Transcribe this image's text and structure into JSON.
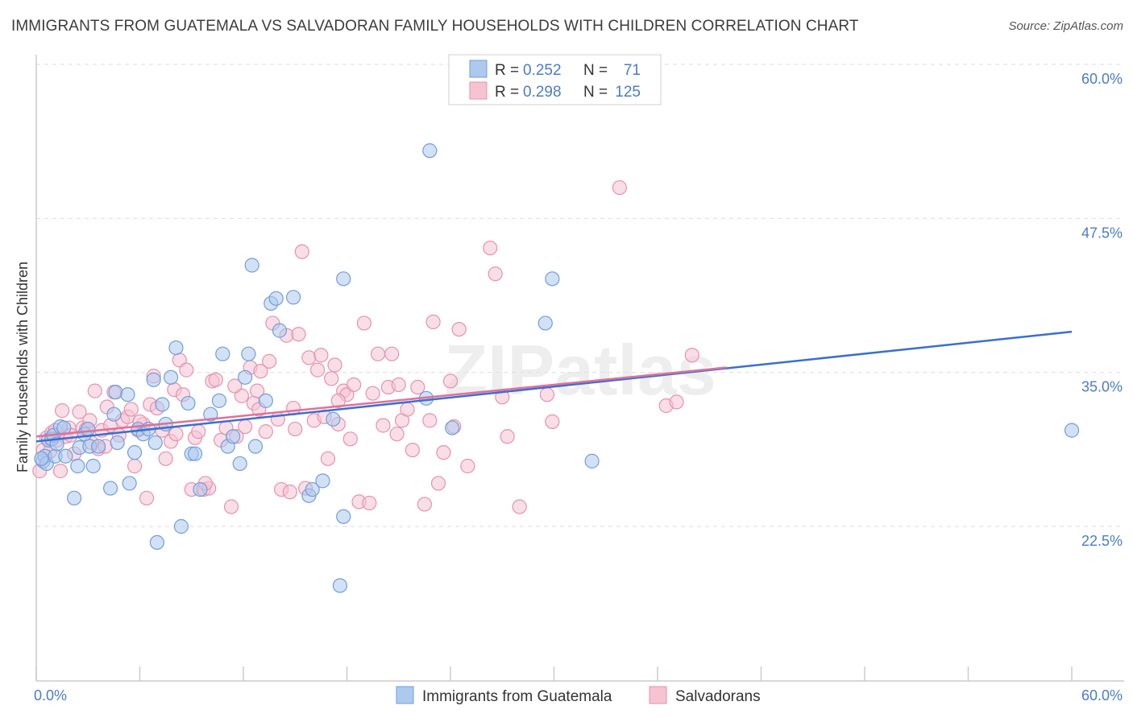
{
  "title": "IMMIGRANTS FROM GUATEMALA VS SALVADORAN FAMILY HOUSEHOLDS WITH CHILDREN CORRELATION CHART",
  "source": "Source: ZipAtlas.com",
  "watermark": "ZIPatlas",
  "colors": {
    "blue_fill": "#aec9ee",
    "blue_stroke": "#6f9fdc",
    "blue_line": "#3a6fcf",
    "pink_fill": "#f6c3d3",
    "pink_stroke": "#e592ae",
    "pink_line": "#e0709a",
    "tick_text": "#4a7cc9",
    "grid": "#dddddd"
  },
  "legend": {
    "rows": [
      {
        "r_label": "R =",
        "r_value": "0.252",
        "n_label": "N =",
        "n_value": "71"
      },
      {
        "r_label": "R =",
        "r_value": "0.298",
        "n_label": "N =",
        "n_value": "125"
      }
    ]
  },
  "chart_data": {
    "type": "scatter",
    "title": "IMMIGRANTS FROM GUATEMALA VS SALVADORAN FAMILY HOUSEHOLDS WITH CHILDREN CORRELATION CHART",
    "xlabel": "",
    "ylabel": "Family Households with Children",
    "xlim": [
      0,
      60
    ],
    "ylim": [
      12,
      61
    ],
    "x_tick_labels": [
      "0.0%",
      "60.0%"
    ],
    "y_ticks": [
      22.5,
      35.0,
      47.5,
      60.0
    ],
    "y_tick_labels": [
      "22.5%",
      "35.0%",
      "47.5%",
      "60.0%"
    ],
    "grid": "horizontal dashed",
    "legend_placement": "top-center",
    "series": [
      {
        "name": "Immigrants from Guatemala",
        "color": "#aec9ee",
        "trend": {
          "x": [
            0,
            60
          ],
          "y": [
            29.4,
            38.3
          ]
        },
        "points": [
          [
            0.4,
            27.8
          ],
          [
            0.5,
            28.2
          ],
          [
            0.6,
            27.6
          ],
          [
            0.7,
            29.5
          ],
          [
            0.9,
            29.6
          ],
          [
            1.0,
            29.9
          ],
          [
            1.1,
            28.2
          ],
          [
            1.2,
            29.2
          ],
          [
            1.4,
            30.6
          ],
          [
            1.6,
            30.5
          ],
          [
            1.7,
            28.2
          ],
          [
            2.2,
            24.8
          ],
          [
            2.4,
            27.4
          ],
          [
            2.5,
            28.9
          ],
          [
            2.8,
            30.0
          ],
          [
            3.0,
            30.4
          ],
          [
            3.1,
            29.0
          ],
          [
            3.3,
            27.4
          ],
          [
            3.6,
            29.0
          ],
          [
            4.3,
            25.6
          ],
          [
            4.5,
            31.6
          ],
          [
            4.6,
            33.4
          ],
          [
            4.7,
            29.3
          ],
          [
            5.3,
            33.2
          ],
          [
            5.4,
            26.0
          ],
          [
            5.7,
            28.5
          ],
          [
            5.9,
            30.4
          ],
          [
            6.2,
            30.0
          ],
          [
            6.5,
            30.4
          ],
          [
            6.8,
            34.4
          ],
          [
            6.9,
            29.3
          ],
          [
            7.0,
            21.2
          ],
          [
            7.3,
            32.4
          ],
          [
            7.5,
            30.8
          ],
          [
            7.8,
            34.6
          ],
          [
            8.1,
            37.0
          ],
          [
            8.4,
            22.5
          ],
          [
            8.8,
            32.5
          ],
          [
            9.0,
            28.4
          ],
          [
            9.2,
            28.4
          ],
          [
            9.5,
            25.5
          ],
          [
            10.1,
            31.6
          ],
          [
            10.6,
            32.7
          ],
          [
            10.8,
            36.5
          ],
          [
            11.1,
            29.0
          ],
          [
            11.4,
            29.8
          ],
          [
            11.8,
            27.6
          ],
          [
            12.1,
            34.6
          ],
          [
            12.3,
            36.5
          ],
          [
            12.5,
            43.7
          ],
          [
            12.7,
            29.0
          ],
          [
            13.3,
            32.7
          ],
          [
            13.6,
            40.6
          ],
          [
            13.9,
            41.0
          ],
          [
            14.1,
            38.4
          ],
          [
            14.9,
            41.1
          ],
          [
            15.8,
            25.0
          ],
          [
            16.0,
            25.5
          ],
          [
            16.6,
            26.2
          ],
          [
            17.2,
            31.2
          ],
          [
            17.6,
            17.7
          ],
          [
            17.8,
            42.6
          ],
          [
            17.8,
            23.3
          ],
          [
            22.6,
            32.9
          ],
          [
            22.8,
            53.0
          ],
          [
            24.1,
            30.5
          ],
          [
            29.5,
            39.0
          ],
          [
            29.9,
            42.6
          ],
          [
            32.2,
            27.8
          ],
          [
            60.0,
            30.3
          ],
          [
            0.3,
            28.0
          ]
        ]
      },
      {
        "name": "Salvadorans",
        "color": "#f6c3d3",
        "trend": {
          "x": [
            0,
            40
          ],
          "y": [
            29.8,
            35.4
          ]
        },
        "points": [
          [
            0.2,
            27.0
          ],
          [
            0.4,
            28.7
          ],
          [
            0.6,
            29.7
          ],
          [
            0.8,
            28.6
          ],
          [
            0.9,
            30.1
          ],
          [
            1.1,
            30.3
          ],
          [
            1.2,
            29.5
          ],
          [
            1.4,
            27.0
          ],
          [
            1.5,
            31.9
          ],
          [
            1.7,
            29.8
          ],
          [
            1.9,
            30.5
          ],
          [
            2.0,
            29.9
          ],
          [
            2.2,
            28.4
          ],
          [
            2.5,
            31.8
          ],
          [
            2.7,
            30.5
          ],
          [
            2.9,
            30.4
          ],
          [
            3.1,
            31.1
          ],
          [
            3.4,
            33.5
          ],
          [
            3.6,
            28.8
          ],
          [
            3.8,
            30.3
          ],
          [
            4.0,
            29.0
          ],
          [
            4.1,
            32.2
          ],
          [
            4.3,
            30.7
          ],
          [
            4.5,
            33.4
          ],
          [
            4.8,
            29.9
          ],
          [
            5.0,
            31.1
          ],
          [
            5.3,
            31.4
          ],
          [
            5.5,
            32.0
          ],
          [
            5.7,
            27.4
          ],
          [
            5.9,
            30.3
          ],
          [
            6.2,
            30.8
          ],
          [
            6.4,
            24.8
          ],
          [
            6.6,
            32.4
          ],
          [
            6.8,
            34.7
          ],
          [
            7.0,
            32.1
          ],
          [
            7.3,
            30.3
          ],
          [
            7.5,
            28.0
          ],
          [
            7.8,
            29.4
          ],
          [
            8.0,
            33.6
          ],
          [
            8.3,
            36.0
          ],
          [
            8.5,
            33.2
          ],
          [
            8.7,
            35.2
          ],
          [
            9.0,
            25.5
          ],
          [
            9.2,
            29.7
          ],
          [
            9.4,
            30.2
          ],
          [
            9.7,
            25.5
          ],
          [
            10.0,
            25.6
          ],
          [
            10.2,
            34.3
          ],
          [
            10.4,
            34.4
          ],
          [
            10.7,
            29.5
          ],
          [
            11.0,
            30.5
          ],
          [
            11.3,
            24.1
          ],
          [
            11.6,
            29.8
          ],
          [
            11.9,
            33.1
          ],
          [
            12.1,
            30.6
          ],
          [
            12.4,
            35.4
          ],
          [
            12.6,
            32.5
          ],
          [
            12.8,
            33.5
          ],
          [
            13.0,
            35.1
          ],
          [
            13.3,
            30.2
          ],
          [
            13.5,
            35.9
          ],
          [
            13.7,
            39.0
          ],
          [
            14.0,
            31.2
          ],
          [
            14.2,
            25.5
          ],
          [
            14.5,
            38.0
          ],
          [
            14.7,
            25.3
          ],
          [
            15.0,
            30.4
          ],
          [
            15.2,
            38.1
          ],
          [
            15.4,
            44.8
          ],
          [
            15.6,
            25.6
          ],
          [
            15.8,
            36.2
          ],
          [
            16.1,
            31.1
          ],
          [
            16.3,
            35.2
          ],
          [
            16.5,
            36.4
          ],
          [
            16.7,
            31.4
          ],
          [
            16.9,
            28.0
          ],
          [
            17.1,
            34.5
          ],
          [
            17.3,
            35.6
          ],
          [
            17.5,
            30.8
          ],
          [
            17.8,
            33.5
          ],
          [
            18.0,
            33.2
          ],
          [
            18.2,
            29.6
          ],
          [
            18.4,
            34.0
          ],
          [
            18.7,
            24.5
          ],
          [
            19.0,
            39.0
          ],
          [
            19.3,
            24.4
          ],
          [
            19.5,
            33.3
          ],
          [
            19.8,
            36.5
          ],
          [
            20.1,
            30.7
          ],
          [
            20.4,
            33.8
          ],
          [
            20.6,
            36.5
          ],
          [
            20.9,
            30.0
          ],
          [
            21.2,
            31.1
          ],
          [
            21.5,
            32.0
          ],
          [
            21.8,
            28.7
          ],
          [
            22.1,
            33.8
          ],
          [
            22.5,
            24.3
          ],
          [
            22.8,
            31.1
          ],
          [
            23.0,
            39.1
          ],
          [
            23.3,
            26.0
          ],
          [
            23.6,
            28.5
          ],
          [
            24.0,
            34.3
          ],
          [
            24.2,
            30.6
          ],
          [
            24.5,
            38.5
          ],
          [
            25.0,
            27.4
          ],
          [
            26.3,
            45.1
          ],
          [
            26.6,
            43.0
          ],
          [
            27.0,
            33.0
          ],
          [
            27.3,
            29.8
          ],
          [
            28.0,
            24.1
          ],
          [
            29.6,
            33.2
          ],
          [
            29.9,
            31.0
          ],
          [
            33.8,
            50.0
          ],
          [
            36.5,
            32.3
          ],
          [
            37.1,
            32.6
          ],
          [
            38.0,
            36.4
          ],
          [
            8.1,
            30.0
          ],
          [
            3.2,
            29.3
          ],
          [
            6.0,
            31.0
          ],
          [
            12.9,
            32.0
          ],
          [
            17.5,
            32.7
          ],
          [
            21.0,
            34.0
          ],
          [
            9.8,
            26.0
          ],
          [
            14.9,
            32.1
          ],
          [
            11.5,
            33.9
          ]
        ]
      }
    ]
  },
  "bottom_legend": [
    {
      "label": "Immigrants from Guatemala"
    },
    {
      "label": "Salvadorans"
    }
  ]
}
